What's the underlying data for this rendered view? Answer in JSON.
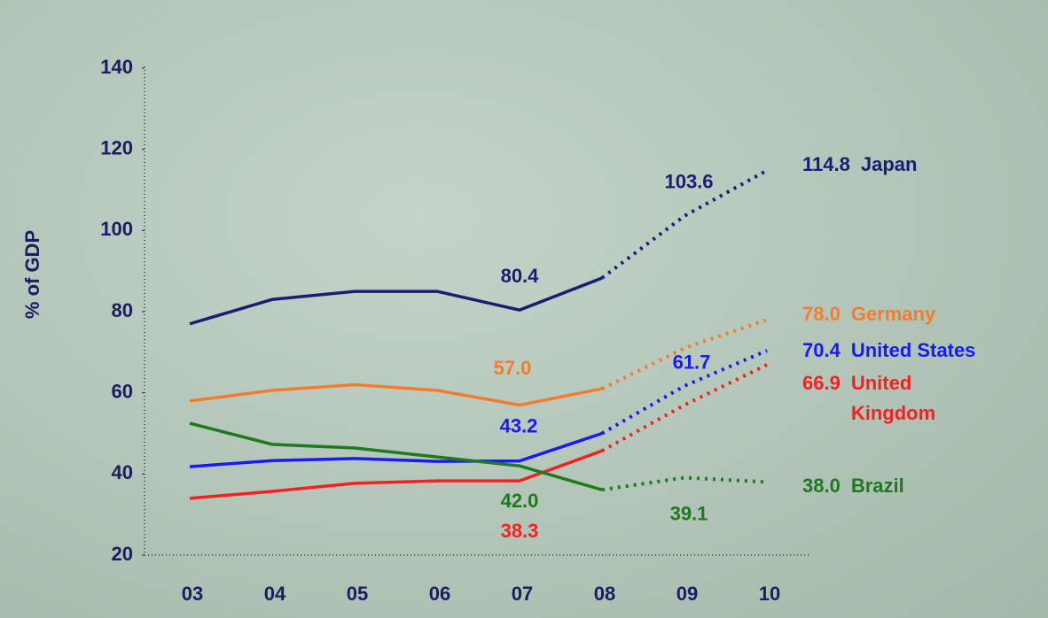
{
  "chart_data": {
    "type": "line",
    "y_label": "% of GDP",
    "categories": [
      "03",
      "04",
      "05",
      "06",
      "07",
      "08",
      "09",
      "10"
    ],
    "dotted_after": "08",
    "ylim": [
      20,
      140
    ],
    "yticks": [
      20,
      40,
      60,
      80,
      100,
      120,
      140
    ],
    "series": [
      {
        "name": "Japan",
        "color": "#1c1c72",
        "values": [
          77,
          83,
          85,
          85,
          80.4,
          88.3,
          103.6,
          114.8
        ],
        "value_labels": [
          null,
          null,
          null,
          null,
          "80.4",
          null,
          "103.6",
          "114.8"
        ]
      },
      {
        "name": "Germany",
        "color": "#f57c2c",
        "values": [
          58,
          60.6,
          62,
          60.6,
          57.0,
          61,
          71,
          78.0
        ],
        "value_labels": [
          null,
          null,
          null,
          null,
          "57.0",
          null,
          null,
          "78.0"
        ]
      },
      {
        "name": "United States",
        "color": "#1a1af5",
        "values": [
          41.8,
          43.3,
          43.8,
          43.1,
          43.2,
          50,
          61.7,
          70.4
        ],
        "value_labels": [
          null,
          null,
          null,
          null,
          "43.2",
          null,
          "61.7",
          "70.4"
        ]
      },
      {
        "name": "United Kingdom",
        "color": "#f52020",
        "values": [
          34,
          35.7,
          37.7,
          38.3,
          38.3,
          45.7,
          57,
          66.9
        ],
        "value_labels": [
          null,
          null,
          null,
          null,
          "38.3",
          null,
          null,
          "66.9"
        ]
      },
      {
        "name": "Brazil",
        "color": "#1f7a1f",
        "values": [
          52.5,
          47.3,
          46.4,
          44.2,
          42.0,
          36.1,
          39.1,
          38.0
        ],
        "value_labels": [
          null,
          null,
          null,
          null,
          "42.0",
          null,
          "39.1",
          "38.0"
        ]
      }
    ]
  }
}
